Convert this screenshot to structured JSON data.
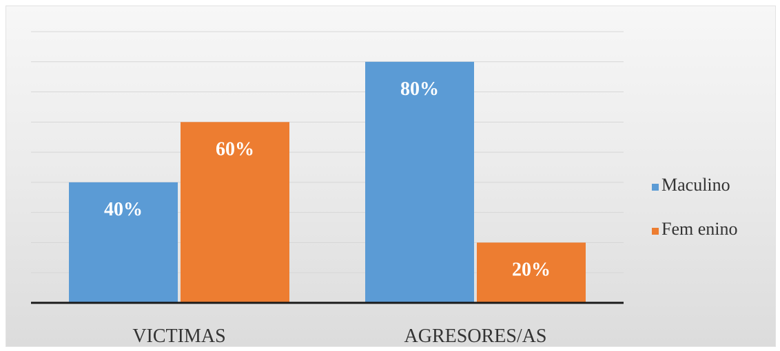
{
  "chart_data": {
    "type": "bar",
    "categories": [
      "VICTIMAS",
      "AGRESORES/AS"
    ],
    "series": [
      {
        "name": "Maculino",
        "values": [
          40,
          80
        ],
        "labels": [
          "40%",
          "80%"
        ],
        "color": "#5b9bd5"
      },
      {
        "name": "Femenino",
        "values": [
          60,
          20
        ],
        "labels": [
          "60%",
          "20%"
        ],
        "color": "#ed7d31"
      }
    ],
    "legend_labels": [
      "Maculino",
      "Fem enino"
    ],
    "ylim": [
      0,
      90
    ],
    "grid": true,
    "legend_position": "right",
    "title": "",
    "xlabel": "",
    "ylabel": "",
    "axis_color": "#1a1a1a",
    "grid_color": "#d6d6d6"
  }
}
